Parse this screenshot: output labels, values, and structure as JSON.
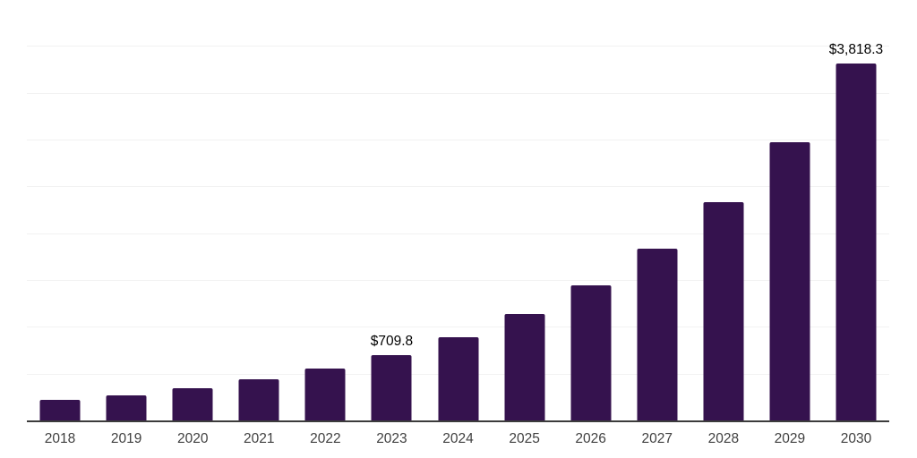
{
  "chart_data": {
    "type": "bar",
    "title": "",
    "xlabel": "",
    "ylabel": "",
    "categories": [
      "2018",
      "2019",
      "2020",
      "2021",
      "2022",
      "2023",
      "2024",
      "2025",
      "2026",
      "2027",
      "2028",
      "2029",
      "2030"
    ],
    "values": [
      230,
      280,
      355,
      450,
      565,
      709.8,
      900,
      1145,
      1450,
      1845,
      2345,
      2985,
      3818.3
    ],
    "value_labels": {
      "2023": "$709.8",
      "2030": "$3,818.3"
    },
    "ylim": [
      0,
      4500
    ],
    "gridline_step": 500,
    "grid": "horizontal",
    "y_tick_labels_visible": false,
    "legend": false,
    "colors": {
      "bar": "#35124E",
      "gridline": "#F2F2F2",
      "axis_line": "#3C3C3C",
      "x_tick_label": "#404040",
      "value_label": "#000000",
      "background": "#FFFFFF"
    }
  }
}
